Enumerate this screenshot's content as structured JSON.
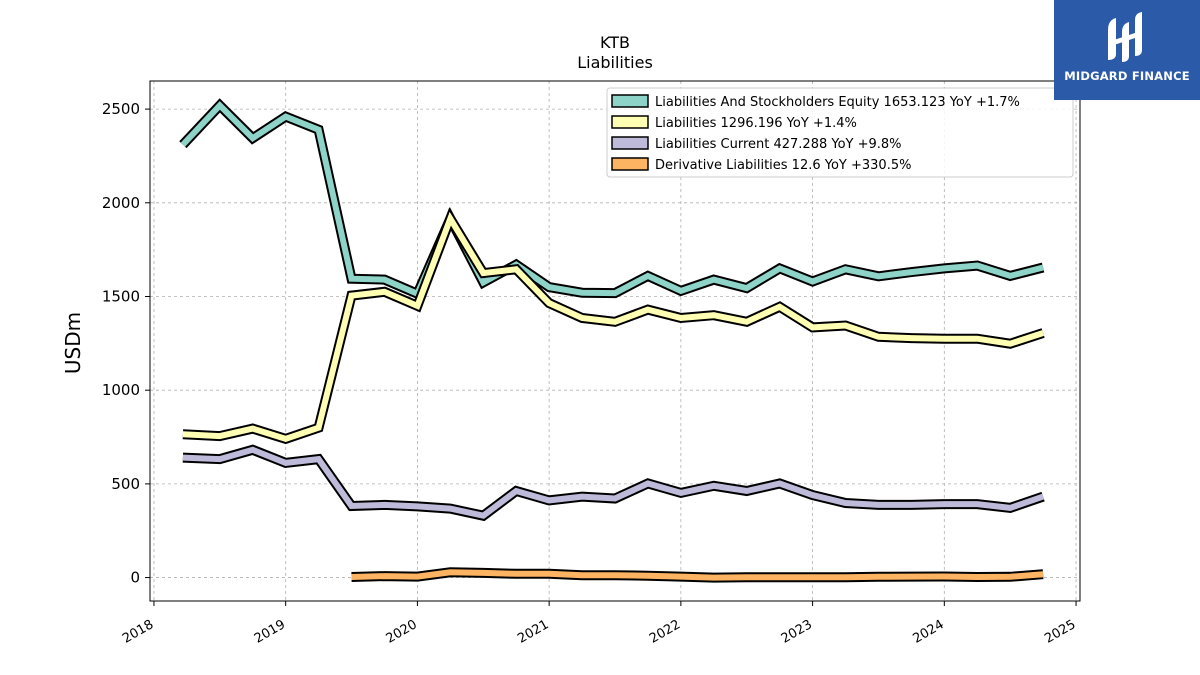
{
  "logo": {
    "text": "MIDGARD FINANCE",
    "color": "#2b5aa8"
  },
  "chart_data": {
    "type": "line",
    "title": "KTB",
    "subtitle": "Liabilities",
    "xlabel": "",
    "ylabel": "USDm",
    "xlim": [
      2017.97,
      2025.03
    ],
    "ylim": [
      -125,
      2650
    ],
    "xticks": [
      "2018",
      "2019",
      "2020",
      "2021",
      "2022",
      "2023",
      "2024",
      "2025"
    ],
    "yticks": [
      0,
      500,
      1000,
      1500,
      2000,
      2500
    ],
    "grid": true,
    "legend_position": "top-right",
    "series": [
      {
        "name": "Liabilities And Stockholders Equity  1653.123 YoY +1.7%",
        "color": "#8dd3c7",
        "x": [
          2018.22,
          2018.5,
          2018.75,
          2019.0,
          2019.25,
          2019.5,
          2019.75,
          2020.0,
          2020.25,
          2020.5,
          2020.75,
          2021.0,
          2021.25,
          2021.5,
          2021.75,
          2022.0,
          2022.25,
          2022.5,
          2022.75,
          2023.0,
          2023.25,
          2023.5,
          2023.75,
          2024.0,
          2024.25,
          2024.5,
          2024.75
        ],
        "values": [
          2310,
          2520,
          2345,
          2460,
          2390,
          1595,
          1590,
          1515,
          1915,
          1575,
          1670,
          1550,
          1520,
          1518,
          1610,
          1530,
          1590,
          1545,
          1650,
          1580,
          1645,
          1608,
          1630,
          1650,
          1665,
          1610,
          1655
        ]
      },
      {
        "name": "Liabilities  1296.196 YoY +1.4%",
        "color": "#ffffb3",
        "x": [
          2018.22,
          2018.5,
          2018.75,
          2019.0,
          2019.25,
          2019.5,
          2019.75,
          2020.0,
          2020.25,
          2020.5,
          2020.75,
          2021.0,
          2021.25,
          2021.5,
          2021.75,
          2022.0,
          2022.25,
          2022.5,
          2022.75,
          2023.0,
          2023.25,
          2023.5,
          2023.75,
          2024.0,
          2024.25,
          2024.5,
          2024.75
        ],
        "values": [
          765,
          755,
          795,
          740,
          800,
          1505,
          1525,
          1450,
          1915,
          1625,
          1645,
          1465,
          1385,
          1365,
          1430,
          1385,
          1400,
          1365,
          1445,
          1335,
          1345,
          1285,
          1278,
          1275,
          1275,
          1248,
          1305
        ]
      },
      {
        "name": "Liabilities Current  427.288 YoY +9.8%",
        "color": "#bebada",
        "x": [
          2018.22,
          2018.5,
          2018.75,
          2019.0,
          2019.25,
          2019.5,
          2019.75,
          2020.0,
          2020.25,
          2020.5,
          2020.75,
          2021.0,
          2021.25,
          2021.5,
          2021.75,
          2022.0,
          2022.25,
          2022.5,
          2022.75,
          2023.0,
          2023.25,
          2023.5,
          2023.75,
          2024.0,
          2024.25,
          2024.5,
          2024.75
        ],
        "values": [
          640,
          632,
          682,
          612,
          632,
          382,
          388,
          380,
          368,
          330,
          462,
          412,
          432,
          422,
          502,
          452,
          490,
          462,
          502,
          440,
          398,
          388,
          388,
          392,
          392,
          372,
          432
        ]
      },
      {
        "name": "Derivative Liabilities  12.6 YoY +330.5%",
        "color": "#fdb462",
        "x": [
          2019.5,
          2019.75,
          2020.0,
          2020.25,
          2020.5,
          2020.75,
          2021.0,
          2021.25,
          2021.5,
          2021.75,
          2022.0,
          2022.25,
          2022.5,
          2022.75,
          2023.0,
          2023.25,
          2023.5,
          2023.75,
          2024.0,
          2024.25,
          2024.5,
          2024.75
        ],
        "values": [
          3,
          8,
          5,
          28,
          25,
          20,
          20,
          12,
          12,
          10,
          5,
          0,
          2,
          2,
          2,
          2,
          4,
          5,
          6,
          3,
          4,
          18
        ]
      }
    ]
  }
}
